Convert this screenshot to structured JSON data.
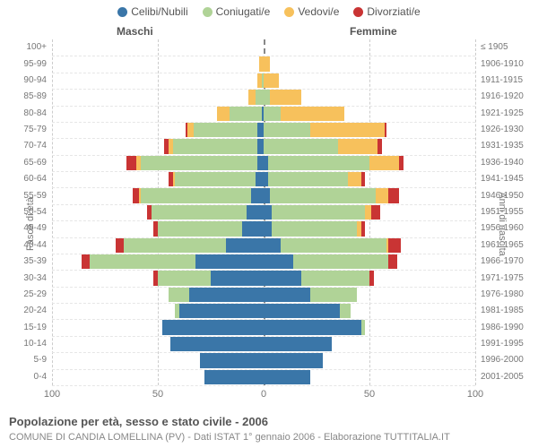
{
  "legend": [
    {
      "label": "Celibi/Nubili",
      "color": "#3a76a8"
    },
    {
      "label": "Coniugati/e",
      "color": "#b0d397"
    },
    {
      "label": "Vedovi/e",
      "color": "#f7c15c"
    },
    {
      "label": "Divorziati/e",
      "color": "#c93434"
    }
  ],
  "headers": {
    "male": "Maschi",
    "female": "Femmine"
  },
  "axis_labels": {
    "left": "Fasce di età",
    "right": "Anni di nascita"
  },
  "title": "Popolazione per età, sesso e stato civile - 2006",
  "subtitle": "COMUNE DI CANDIA LOMELLINA (PV) - Dati ISTAT 1° gennaio 2006 - Elaborazione TUTTITALIA.IT",
  "x_axis": {
    "max": 100,
    "ticks": [
      100,
      50,
      0,
      50,
      100
    ]
  },
  "colors": {
    "grid": "#cccccc",
    "center": "#888888",
    "row_divider": "#e6e6e6",
    "text": "#777777",
    "bg": "#ffffff"
  },
  "rows": [
    {
      "age": "100+",
      "birth": "≤ 1905",
      "m": [
        0,
        0,
        0,
        0
      ],
      "f": [
        0,
        0,
        0,
        0
      ]
    },
    {
      "age": "95-99",
      "birth": "1906-1910",
      "m": [
        0,
        0,
        2,
        0
      ],
      "f": [
        0,
        0,
        3,
        0
      ]
    },
    {
      "age": "90-94",
      "birth": "1911-1915",
      "m": [
        0,
        1,
        2,
        0
      ],
      "f": [
        0,
        0,
        7,
        0
      ]
    },
    {
      "age": "85-89",
      "birth": "1916-1920",
      "m": [
        0,
        4,
        3,
        0
      ],
      "f": [
        0,
        3,
        15,
        0
      ]
    },
    {
      "age": "80-84",
      "birth": "1921-1925",
      "m": [
        1,
        15,
        6,
        0
      ],
      "f": [
        0,
        8,
        30,
        0
      ]
    },
    {
      "age": "75-79",
      "birth": "1926-1930",
      "m": [
        3,
        30,
        3,
        1
      ],
      "f": [
        0,
        22,
        35,
        1
      ]
    },
    {
      "age": "70-74",
      "birth": "1931-1935",
      "m": [
        3,
        40,
        2,
        2
      ],
      "f": [
        0,
        35,
        19,
        2
      ]
    },
    {
      "age": "65-69",
      "birth": "1936-1940",
      "m": [
        3,
        55,
        2,
        5
      ],
      "f": [
        2,
        48,
        14,
        2
      ]
    },
    {
      "age": "60-64",
      "birth": "1941-1945",
      "m": [
        4,
        38,
        1,
        2
      ],
      "f": [
        2,
        38,
        6,
        2
      ]
    },
    {
      "age": "55-59",
      "birth": "1946-1950",
      "m": [
        6,
        52,
        1,
        3
      ],
      "f": [
        3,
        50,
        6,
        5
      ]
    },
    {
      "age": "50-54",
      "birth": "1951-1955",
      "m": [
        8,
        45,
        0,
        2
      ],
      "f": [
        4,
        44,
        3,
        4
      ]
    },
    {
      "age": "45-49",
      "birth": "1956-1960",
      "m": [
        10,
        40,
        0,
        2
      ],
      "f": [
        4,
        40,
        2,
        2
      ]
    },
    {
      "age": "40-44",
      "birth": "1961-1965",
      "m": [
        18,
        48,
        0,
        4
      ],
      "f": [
        8,
        50,
        1,
        6
      ]
    },
    {
      "age": "35-39",
      "birth": "1966-1970",
      "m": [
        32,
        50,
        0,
        4
      ],
      "f": [
        14,
        45,
        0,
        4
      ]
    },
    {
      "age": "30-34",
      "birth": "1971-1975",
      "m": [
        25,
        25,
        0,
        2
      ],
      "f": [
        18,
        32,
        0,
        2
      ]
    },
    {
      "age": "25-29",
      "birth": "1976-1980",
      "m": [
        35,
        10,
        0,
        0
      ],
      "f": [
        22,
        22,
        0,
        0
      ]
    },
    {
      "age": "20-24",
      "birth": "1981-1985",
      "m": [
        40,
        2,
        0,
        0
      ],
      "f": [
        36,
        5,
        0,
        0
      ]
    },
    {
      "age": "15-19",
      "birth": "1986-1990",
      "m": [
        48,
        0,
        0,
        0
      ],
      "f": [
        46,
        2,
        0,
        0
      ]
    },
    {
      "age": "10-14",
      "birth": "1991-1995",
      "m": [
        44,
        0,
        0,
        0
      ],
      "f": [
        32,
        0,
        0,
        0
      ]
    },
    {
      "age": "5-9",
      "birth": "1996-2000",
      "m": [
        30,
        0,
        0,
        0
      ],
      "f": [
        28,
        0,
        0,
        0
      ]
    },
    {
      "age": "0-4",
      "birth": "2001-2005",
      "m": [
        28,
        0,
        0,
        0
      ],
      "f": [
        22,
        0,
        0,
        0
      ]
    }
  ]
}
